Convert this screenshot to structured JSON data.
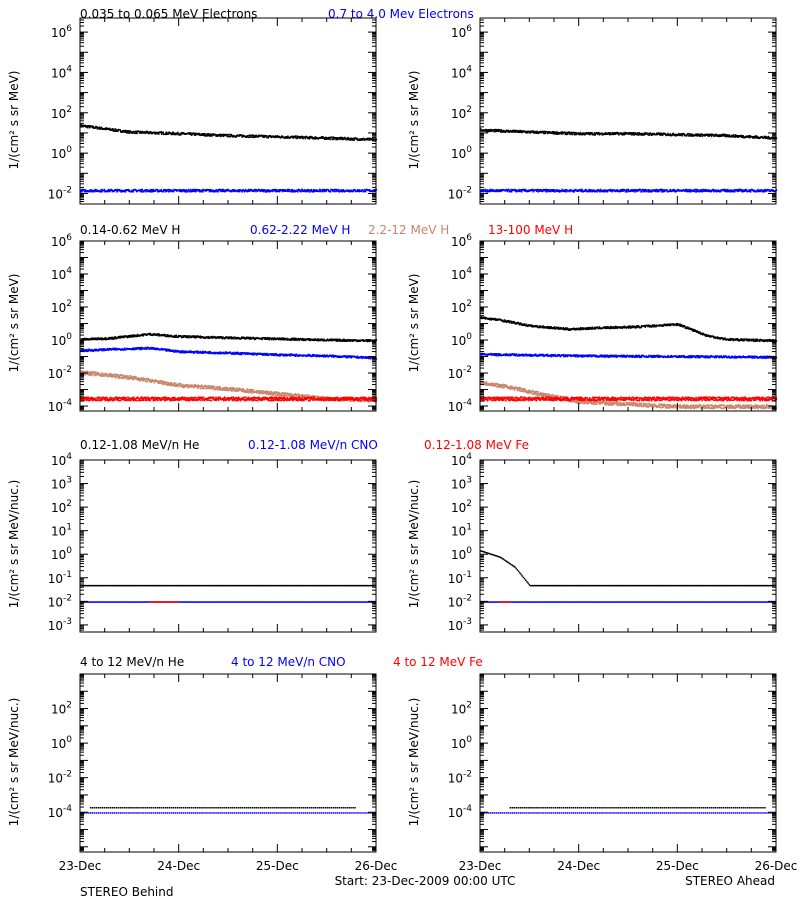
{
  "colors": {
    "black": "#000000",
    "blue": "#0000ff",
    "tan": "#c8866a",
    "red": "#ff0000"
  },
  "rows": [
    {
      "legend": [
        {
          "text": "0.035 to 0.065 MeV Electrons",
          "color": "black"
        },
        {
          "text": "0.7 to 4.0 Mev Electrons",
          "color": "blue"
        }
      ],
      "ylabel": "1/(cm² s sr MeV)"
    },
    {
      "legend": [
        {
          "text": "0.14-0.62 MeV H",
          "color": "black"
        },
        {
          "text": "0.62-2.22 MeV H",
          "color": "blue"
        },
        {
          "text": "2.2-12 MeV H",
          "color": "tan"
        },
        {
          "text": "13-100 MeV H",
          "color": "red"
        }
      ],
      "ylabel": "1/(cm² s sr MeV)"
    },
    {
      "legend": [
        {
          "text": "0.12-1.08 MeV/n He",
          "color": "black"
        },
        {
          "text": "0.12-1.08 MeV/n CNO",
          "color": "blue"
        },
        {
          "text": "0.12-1.08 MeV Fe",
          "color": "red"
        }
      ],
      "ylabel": "1/(cm² s sr MeV/nuc.)"
    },
    {
      "legend": [
        {
          "text": "4 to 12 MeV/n He",
          "color": "black"
        },
        {
          "text": "4 to 12 MeV/n CNO",
          "color": "blue"
        },
        {
          "text": "4 to 12 MeV Fe",
          "color": "red"
        }
      ],
      "ylabel": "1/(cm² s sr MeV/nuc.)"
    }
  ],
  "footer": {
    "left": "STEREO Behind",
    "center": "Start: 23-Dec-2009 00:00 UTC",
    "right": "STEREO Ahead"
  },
  "chart_data": [
    {
      "panel": "Row 1 STEREO Behind",
      "type": "scatter",
      "x_ticks": [
        "23-Dec",
        "24-Dec",
        "25-Dec",
        "26-Dec"
      ],
      "x_range_days": [
        0,
        3
      ],
      "y_scale": "log",
      "ylim": [
        0.003,
        5000000
      ],
      "y_tick_exponents": [
        -2,
        0,
        2,
        4,
        6
      ],
      "series": [
        {
          "name": "0.035 to 0.065 MeV Electrons",
          "color": "black",
          "days": [
            0,
            0.5,
            1,
            1.5,
            2,
            2.5,
            3
          ],
          "values": [
            25,
            12,
            10,
            8,
            7,
            6,
            5
          ]
        },
        {
          "name": "0.7 to 4.0 Mev Electrons",
          "color": "blue",
          "days": [
            0,
            1,
            2,
            3
          ],
          "values": [
            0.015,
            0.015,
            0.015,
            0.015
          ]
        }
      ]
    },
    {
      "panel": "Row 1 STEREO Ahead",
      "type": "scatter",
      "x_ticks": [
        "23-Dec",
        "24-Dec",
        "25-Dec",
        "26-Dec"
      ],
      "x_range_days": [
        0,
        3
      ],
      "y_scale": "log",
      "ylim": [
        0.003,
        5000000
      ],
      "y_tick_exponents": [
        -2,
        0,
        2,
        4,
        6
      ],
      "series": [
        {
          "name": "0.035 to 0.065 MeV Electrons",
          "color": "black",
          "days": [
            0,
            0.5,
            1,
            1.5,
            2,
            2.5,
            3
          ],
          "values": [
            15,
            12,
            10,
            10,
            9,
            8,
            6
          ]
        },
        {
          "name": "0.7 to 4.0 Mev Electrons",
          "color": "blue",
          "days": [
            0,
            1,
            2,
            3
          ],
          "values": [
            0.015,
            0.015,
            0.015,
            0.015
          ]
        }
      ]
    },
    {
      "panel": "Row 2 STEREO Behind",
      "type": "scatter",
      "x_ticks": [
        "23-Dec",
        "24-Dec",
        "25-Dec",
        "26-Dec"
      ],
      "x_range_days": [
        0,
        3
      ],
      "y_scale": "log",
      "ylim": [
        5e-05,
        1000000
      ],
      "y_tick_exponents": [
        -4,
        -2,
        0,
        2,
        4,
        6
      ],
      "series": [
        {
          "name": "0.14-0.62 MeV H",
          "color": "black",
          "days": [
            0,
            0.3,
            0.7,
            1,
            1.5,
            2,
            2.5,
            3
          ],
          "values": [
            1.2,
            1.4,
            2.5,
            1.8,
            1.5,
            1.3,
            1.1,
            1.0
          ]
        },
        {
          "name": "0.62-2.22 MeV H",
          "color": "blue",
          "days": [
            0,
            0.3,
            0.7,
            1,
            1.5,
            2,
            2.5,
            3
          ],
          "values": [
            0.25,
            0.3,
            0.35,
            0.22,
            0.18,
            0.14,
            0.12,
            0.09
          ]
        },
        {
          "name": "2.2-12 MeV H",
          "color": "tan",
          "days": [
            0,
            0.5,
            1,
            1.5,
            2,
            2.5,
            3
          ],
          "values": [
            0.012,
            0.006,
            0.002,
            0.0012,
            0.0006,
            0.0003,
            0.00025
          ]
        },
        {
          "name": "13-100 MeV H",
          "color": "red",
          "days": [
            0,
            1,
            2,
            3
          ],
          "values": [
            0.0003,
            0.0003,
            0.0003,
            0.0003
          ]
        }
      ]
    },
    {
      "panel": "Row 2 STEREO Ahead",
      "type": "scatter",
      "x_ticks": [
        "23-Dec",
        "24-Dec",
        "25-Dec",
        "26-Dec"
      ],
      "x_range_days": [
        0,
        3
      ],
      "y_scale": "log",
      "ylim": [
        5e-05,
        1000000
      ],
      "y_tick_exponents": [
        -4,
        -2,
        0,
        2,
        4,
        6
      ],
      "series": [
        {
          "name": "0.14-0.62 MeV H",
          "color": "black",
          "days": [
            0,
            0.2,
            0.5,
            0.9,
            1.2,
            1.6,
            2.0,
            2.3,
            2.5,
            3
          ],
          "values": [
            25,
            18,
            8,
            5,
            6,
            7,
            10,
            2,
            1.2,
            1.0
          ]
        },
        {
          "name": "0.62-2.22 MeV H",
          "color": "blue",
          "days": [
            0,
            1,
            2,
            3
          ],
          "values": [
            0.15,
            0.12,
            0.11,
            0.1
          ]
        },
        {
          "name": "2.2-12 MeV H",
          "color": "tan",
          "days": [
            0,
            0.3,
            0.6,
            1,
            2,
            3
          ],
          "values": [
            0.003,
            0.0015,
            0.0006,
            0.0002,
            0.0001,
            0.0001
          ]
        },
        {
          "name": "13-100 MeV H",
          "color": "red",
          "days": [
            0,
            1,
            2,
            3
          ],
          "values": [
            0.0003,
            0.0003,
            0.0003,
            0.0003
          ]
        }
      ]
    },
    {
      "panel": "Row 3 STEREO Behind",
      "type": "scatter",
      "x_ticks": [
        "23-Dec",
        "24-Dec",
        "25-Dec",
        "26-Dec"
      ],
      "x_range_days": [
        0,
        3
      ],
      "y_scale": "log",
      "ylim": [
        0.0005,
        10000
      ],
      "y_tick_exponents": [
        -3,
        -2,
        -1,
        0,
        1,
        2,
        3,
        4
      ],
      "series": [
        {
          "name": "0.12-1.08 MeV/n He",
          "color": "black",
          "days": [
            0,
            3
          ],
          "values": [
            0.05,
            0.05
          ]
        },
        {
          "name": "0.12-1.08 MeV/n CNO",
          "color": "blue",
          "days": [
            0,
            3
          ],
          "values": [
            0.01,
            0.01
          ]
        },
        {
          "name": "0.12-1.08 MeV Fe",
          "color": "red",
          "days": [
            0.7,
            1.0
          ],
          "values": [
            0.01,
            0.01
          ]
        }
      ]
    },
    {
      "panel": "Row 3 STEREO Ahead",
      "type": "scatter",
      "x_ticks": [
        "23-Dec",
        "24-Dec",
        "25-Dec",
        "26-Dec"
      ],
      "x_range_days": [
        0,
        3
      ],
      "y_scale": "log",
      "ylim": [
        0.0005,
        10000
      ],
      "y_tick_exponents": [
        -3,
        -2,
        -1,
        0,
        1,
        2,
        3,
        4
      ],
      "series": [
        {
          "name": "0.12-1.08 MeV/n He",
          "color": "black",
          "days": [
            0,
            0.2,
            0.35,
            0.5,
            3
          ],
          "values": [
            1.5,
            0.8,
            0.3,
            0.05,
            0.05
          ]
        },
        {
          "name": "0.12-1.08 MeV/n CNO",
          "color": "blue",
          "days": [
            0,
            3
          ],
          "values": [
            0.01,
            0.01
          ]
        },
        {
          "name": "0.12-1.08 MeV Fe",
          "color": "red",
          "days": [
            0.2,
            0.3
          ],
          "values": [
            0.01,
            0.01
          ]
        }
      ]
    },
    {
      "panel": "Row 4 STEREO Behind",
      "type": "scatter",
      "x_ticks": [
        "23-Dec",
        "24-Dec",
        "25-Dec",
        "26-Dec"
      ],
      "x_range_days": [
        0,
        3
      ],
      "y_scale": "log",
      "ylim": [
        5e-07,
        10000
      ],
      "y_tick_exponents": [
        -4,
        -2,
        0,
        2
      ],
      "series": [
        {
          "name": "4 to 12 MeV/n He",
          "color": "black",
          "days": [
            0.1,
            0.9,
            1.9,
            2.8
          ],
          "values": [
            0.0002,
            0.0002,
            0.0002,
            0.0002
          ]
        },
        {
          "name": "4 to 12 MeV/n CNO",
          "color": "blue",
          "days": [
            0,
            3
          ],
          "values": [
            0.0001,
            0.0001
          ]
        }
      ]
    },
    {
      "panel": "Row 4 STEREO Ahead",
      "type": "scatter",
      "x_ticks": [
        "23-Dec",
        "24-Dec",
        "25-Dec",
        "26-Dec"
      ],
      "x_range_days": [
        0,
        3
      ],
      "y_scale": "log",
      "ylim": [
        5e-07,
        10000
      ],
      "y_tick_exponents": [
        -4,
        -2,
        0,
        2
      ],
      "series": [
        {
          "name": "4 to 12 MeV/n He",
          "color": "black",
          "days": [
            0.3,
            1.9,
            2.3,
            2.9
          ],
          "values": [
            0.0002,
            0.0002,
            0.0002,
            0.0002
          ]
        },
        {
          "name": "4 to 12 MeV/n CNO",
          "color": "blue",
          "days": [
            0,
            3
          ],
          "values": [
            0.0001,
            0.0001
          ]
        }
      ]
    }
  ]
}
